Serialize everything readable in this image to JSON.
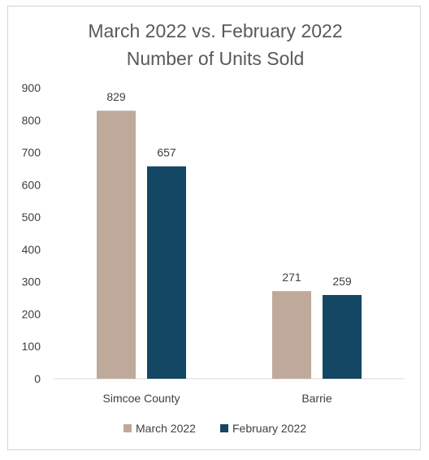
{
  "chart_data": {
    "type": "bar",
    "title": "March 2022 vs. February 2022",
    "subtitle": "Number of Units Sold",
    "categories": [
      "Simcoe County",
      "Barrie"
    ],
    "series": [
      {
        "name": "March 2022",
        "values": [
          829,
          271
        ],
        "color": "#bfa99a"
      },
      {
        "name": "February 2022",
        "values": [
          657,
          259
        ],
        "color": "#144763"
      }
    ],
    "ylim": [
      0,
      900
    ],
    "yticks": [
      "0",
      "100",
      "200",
      "300",
      "400",
      "500",
      "600",
      "700",
      "800",
      "900"
    ],
    "grid": false,
    "legend_position": "bottom",
    "data_labels": true
  }
}
